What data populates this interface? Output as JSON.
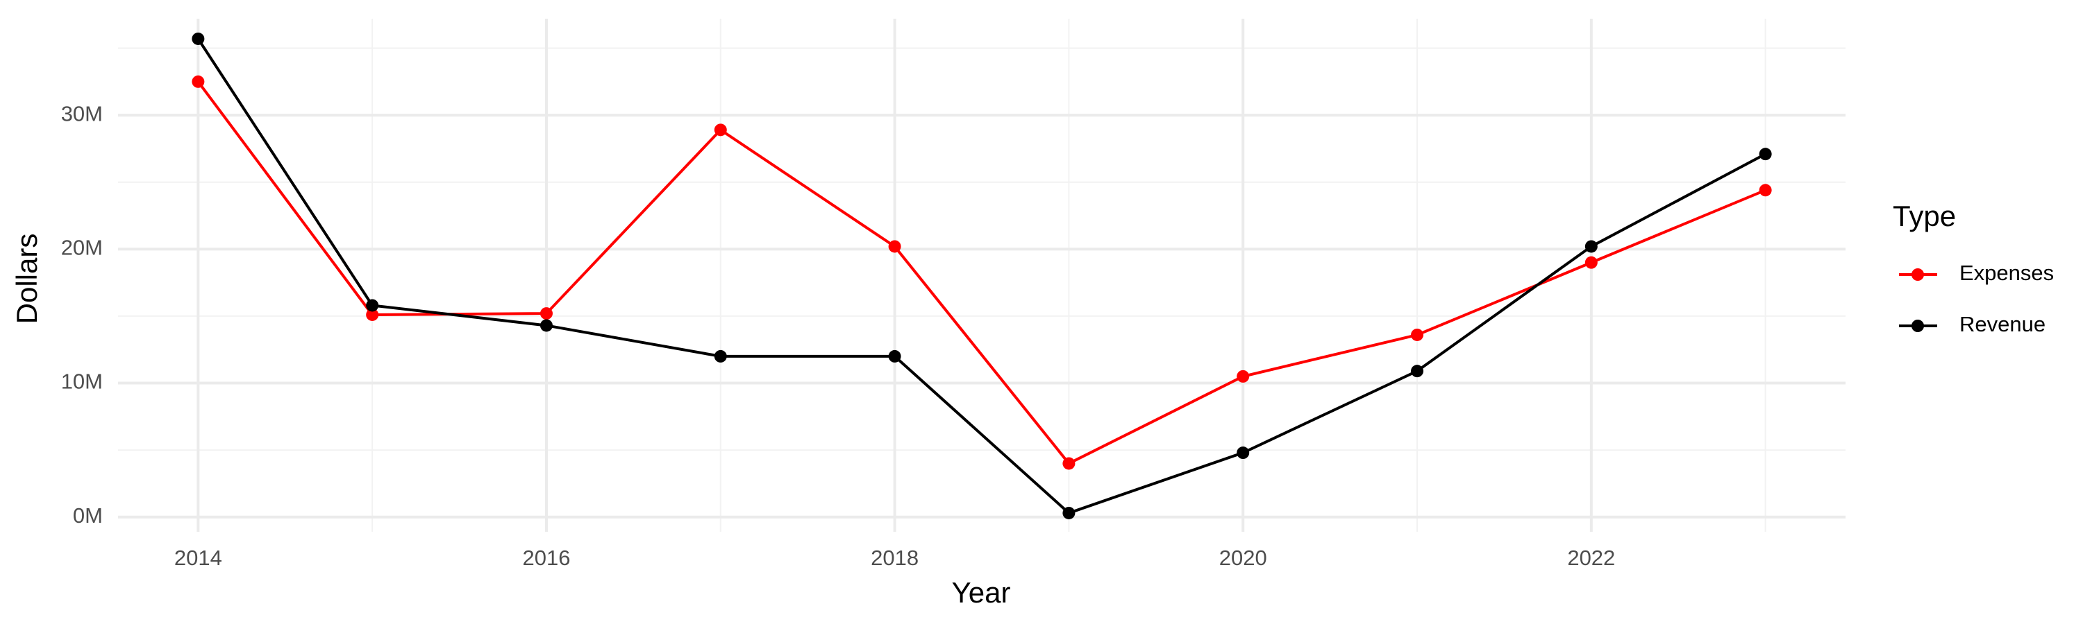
{
  "chart_data": {
    "type": "line",
    "x_label": "Year",
    "y_label": "Dollars",
    "legend_title": "Type",
    "legend": "right",
    "grid": true,
    "x": [
      2014,
      2015,
      2016,
      2017,
      2018,
      2019,
      2020,
      2021,
      2022,
      2023
    ],
    "series": [
      {
        "name": "Expenses",
        "color": "#ff0000",
        "values": [
          32500000,
          15100000,
          15200000,
          28900000,
          20200000,
          4000000,
          10500000,
          13600000,
          19000000,
          24400000
        ]
      },
      {
        "name": "Revenue",
        "color": "#000000",
        "values": [
          35700000,
          15800000,
          14300000,
          12000000,
          12000000,
          300000,
          4800000,
          10900000,
          20200000,
          27100000
        ]
      }
    ],
    "xlim": [
      2013.54,
      2023.46
    ],
    "xticks": [
      2014,
      2016,
      2018,
      2020,
      2022
    ],
    "ylim": [
      -1100000,
      37200000
    ],
    "yticks": [
      {
        "value": 0,
        "label": "0M"
      },
      {
        "value": 10000000,
        "label": "10M"
      },
      {
        "value": 20000000,
        "label": "20M"
      },
      {
        "value": 30000000,
        "label": "30M"
      }
    ]
  }
}
